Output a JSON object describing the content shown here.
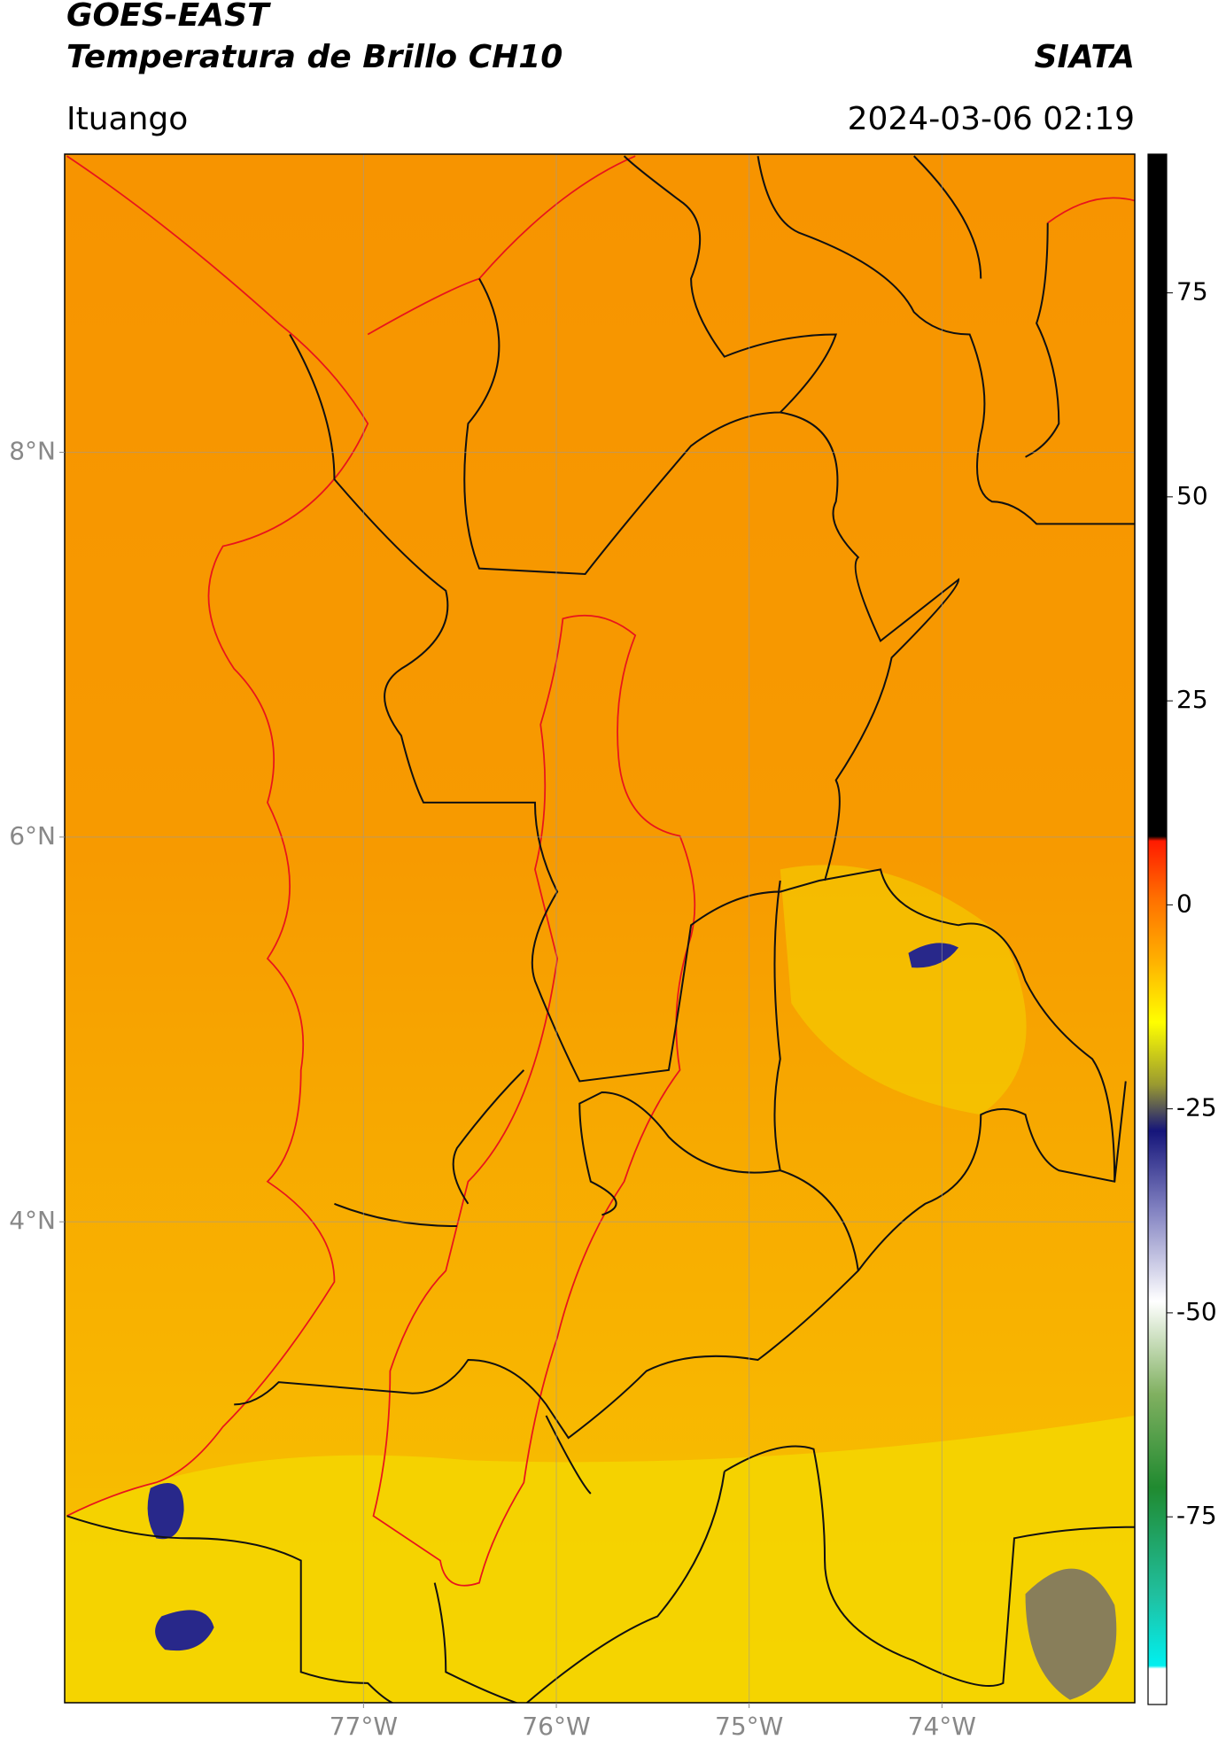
{
  "header": {
    "title": "GOES-EAST",
    "subtitle": "Temperatura de Brillo CH10",
    "brand": "SIATA",
    "location": "Ituango",
    "datetime": "2024-03-06 02:19"
  },
  "map": {
    "xlim": [
      -78.55,
      -73.0
    ],
    "ylim": [
      1.5,
      9.55
    ],
    "xticks": [
      {
        "value": -77,
        "label": "77°W"
      },
      {
        "value": -76,
        "label": "76°W"
      },
      {
        "value": -75,
        "label": "75°W"
      },
      {
        "value": -74,
        "label": "74°W"
      }
    ],
    "yticks": [
      {
        "value": 8,
        "label": "8°N"
      },
      {
        "value": 6,
        "label": "6°N"
      },
      {
        "value": 4,
        "label": "4°N"
      }
    ]
  },
  "colorbar": {
    "lim": [
      -98,
      92
    ],
    "ticks": [
      75,
      50,
      25,
      0,
      -25,
      -50,
      -75
    ]
  }
}
